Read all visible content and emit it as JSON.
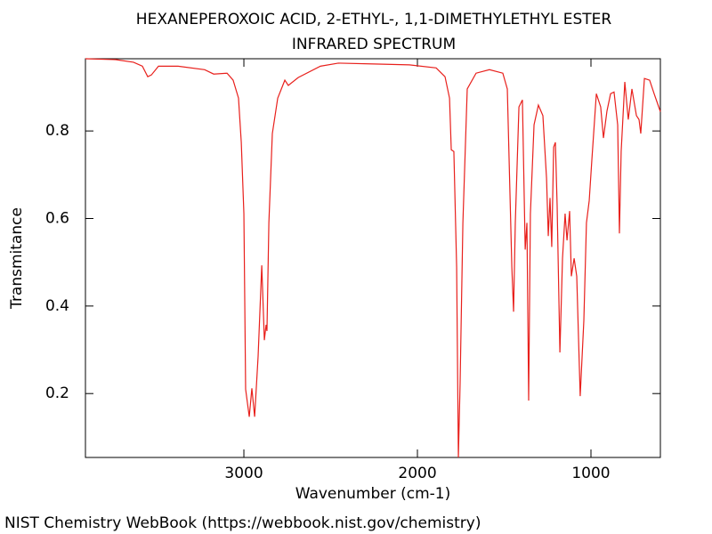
{
  "chart_data": {
    "type": "line",
    "title": "HEXANEPEROXOIC ACID, 2-ETHYL-, 1,1-DIMETHYLETHYL ESTER",
    "subtitle": "INFRARED SPECTRUM",
    "x_label": "Wavenumber (cm-1)",
    "y_label": "Transmitance",
    "source": "NIST Chemistry WebBook (https://webbook.nist.gov/chemistry)",
    "xlim": [
      3913,
      600
    ],
    "ylim": [
      0.054,
      0.965
    ],
    "xticks": [
      3000,
      2000,
      1000
    ],
    "yticks": [
      0.2,
      0.4,
      0.6,
      0.8
    ],
    "grid": false,
    "series": [
      {
        "name": "spectrum",
        "color": "#e8201c",
        "x": [
          3913,
          3738,
          3636,
          3585,
          3554,
          3533,
          3492,
          3379,
          3226,
          3174,
          3097,
          3062,
          3031,
          3015,
          3000,
          2990,
          2969,
          2954,
          2938,
          2918,
          2897,
          2882,
          2872,
          2867,
          2856,
          2836,
          2805,
          2764,
          2744,
          2687,
          2559,
          2456,
          2251,
          2046,
          1892,
          1841,
          1815,
          1805,
          1790,
          1774,
          1764,
          1754,
          1738,
          1713,
          1662,
          1585,
          1508,
          1482,
          1456,
          1446,
          1436,
          1415,
          1395,
          1379,
          1369,
          1359,
          1349,
          1328,
          1303,
          1277,
          1256,
          1246,
          1236,
          1226,
          1215,
          1205,
          1195,
          1179,
          1164,
          1149,
          1138,
          1123,
          1113,
          1097,
          1082,
          1062,
          1041,
          1026,
          1010,
          995,
          969,
          944,
          928,
          908,
          887,
          867,
          846,
          836,
          826,
          805,
          785,
          764,
          738,
          723,
          713,
          692,
          662,
          636,
          600
        ],
        "values": [
          0.965,
          0.963,
          0.957,
          0.948,
          0.924,
          0.928,
          0.948,
          0.948,
          0.94,
          0.93,
          0.932,
          0.916,
          0.875,
          0.774,
          0.611,
          0.21,
          0.147,
          0.212,
          0.147,
          0.285,
          0.493,
          0.322,
          0.357,
          0.343,
          0.59,
          0.794,
          0.875,
          0.916,
          0.904,
          0.922,
          0.948,
          0.955,
          0.953,
          0.951,
          0.944,
          0.924,
          0.875,
          0.757,
          0.753,
          0.489,
          0.054,
          0.224,
          0.59,
          0.896,
          0.932,
          0.94,
          0.932,
          0.896,
          0.489,
          0.387,
          0.59,
          0.855,
          0.871,
          0.529,
          0.59,
          0.184,
          0.611,
          0.814,
          0.859,
          0.835,
          0.692,
          0.56,
          0.647,
          0.535,
          0.763,
          0.774,
          0.631,
          0.294,
          0.509,
          0.611,
          0.55,
          0.617,
          0.468,
          0.509,
          0.468,
          0.194,
          0.367,
          0.59,
          0.641,
          0.733,
          0.885,
          0.855,
          0.784,
          0.845,
          0.885,
          0.889,
          0.814,
          0.566,
          0.753,
          0.912,
          0.826,
          0.896,
          0.835,
          0.826,
          0.794,
          0.92,
          0.916,
          0.885,
          0.844
        ]
      }
    ]
  }
}
